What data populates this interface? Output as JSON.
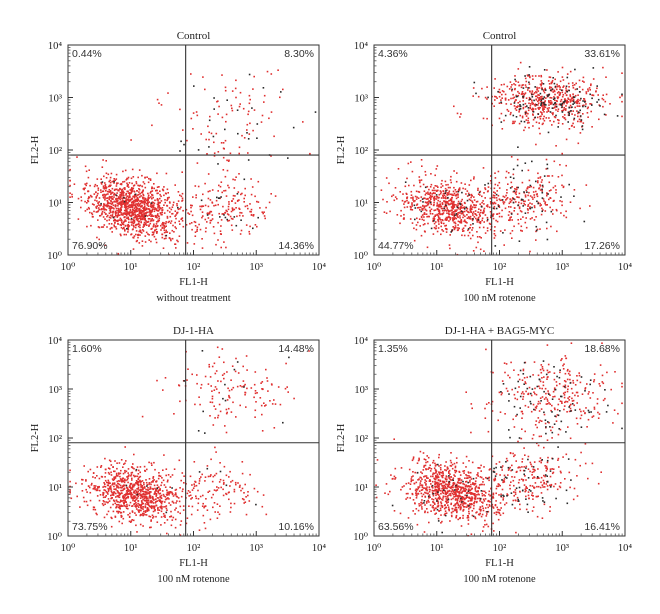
{
  "chart_data": [
    {
      "type": "scatter",
      "title": "Control",
      "caption": "without treatment",
      "xlabel": "FL1-H",
      "ylabel": "FL2-H",
      "xscale": "log",
      "yscale": "log",
      "xlim": [
        1,
        10000
      ],
      "ylim": [
        1,
        10000
      ],
      "x_ticks": [
        "10⁰",
        "10¹",
        "10²",
        "10³",
        "10⁴"
      ],
      "y_ticks": [
        "10⁰",
        "10¹",
        "10²",
        "10³",
        "10⁴"
      ],
      "gate": {
        "x": 75,
        "y": 80
      },
      "quadrants": {
        "upper_left": "0.44%",
        "upper_right": "8.30%",
        "lower_left": "76.90%",
        "lower_right": "14.36%"
      },
      "series": [
        {
          "color": "#e03030",
          "count": 1450
        },
        {
          "color": "#2a2a2a",
          "count": 60
        }
      ]
    },
    {
      "type": "scatter",
      "title": "Control",
      "caption": "100 nM rotenone",
      "xlabel": "FL1-H",
      "ylabel": "FL2-H",
      "xscale": "log",
      "yscale": "log",
      "xlim": [
        1,
        10000
      ],
      "ylim": [
        1,
        10000
      ],
      "x_ticks": [
        "10⁰",
        "10¹",
        "10²",
        "10³",
        "10⁴"
      ],
      "y_ticks": [
        "10⁰",
        "10¹",
        "10²",
        "10³",
        "10⁴"
      ],
      "gate": {
        "x": 75,
        "y": 80
      },
      "quadrants": {
        "upper_left": "4.36%",
        "upper_right": "33.61%",
        "lower_left": "44.77%",
        "lower_right": "17.26%"
      },
      "series": [
        {
          "color": "#e03030",
          "count": 1500
        },
        {
          "color": "#2a2a2a",
          "count": 220
        }
      ]
    },
    {
      "type": "scatter",
      "title": "DJ-1-HA",
      "caption": "100 nM rotenone",
      "xlabel": "FL1-H",
      "ylabel": "FL2-H",
      "xscale": "log",
      "yscale": "log",
      "xlim": [
        1,
        10000
      ],
      "ylim": [
        1,
        10000
      ],
      "x_ticks": [
        "10⁰",
        "10¹",
        "10²",
        "10³",
        "10⁴"
      ],
      "y_ticks": [
        "10⁰",
        "10¹",
        "10²",
        "10³",
        "10⁴"
      ],
      "gate": {
        "x": 75,
        "y": 80
      },
      "quadrants": {
        "upper_left": "1.60%",
        "upper_right": "14.48%",
        "lower_left": "73.75%",
        "lower_right": "10.16%"
      },
      "series": [
        {
          "color": "#e03030",
          "count": 1150
        },
        {
          "color": "#2a2a2a",
          "count": 25
        }
      ]
    },
    {
      "type": "scatter",
      "title": "DJ-1-HA + BAG5-MYC",
      "caption": "100 nM rotenone",
      "xlabel": "FL1-H",
      "ylabel": "FL2-H",
      "xscale": "log",
      "yscale": "log",
      "xlim": [
        1,
        10000
      ],
      "ylim": [
        1,
        10000
      ],
      "x_ticks": [
        "10⁰",
        "10¹",
        "10²",
        "10³",
        "10⁴"
      ],
      "y_ticks": [
        "10⁰",
        "10¹",
        "10²",
        "10³",
        "10⁴"
      ],
      "gate": {
        "x": 75,
        "y": 80
      },
      "quadrants": {
        "upper_left": "1.35%",
        "upper_right": "18.68%",
        "lower_left": "63.56%",
        "lower_right": "16.41%"
      },
      "series": [
        {
          "color": "#e03030",
          "count": 1400
        },
        {
          "color": "#2a2a2a",
          "count": 160
        }
      ]
    }
  ]
}
